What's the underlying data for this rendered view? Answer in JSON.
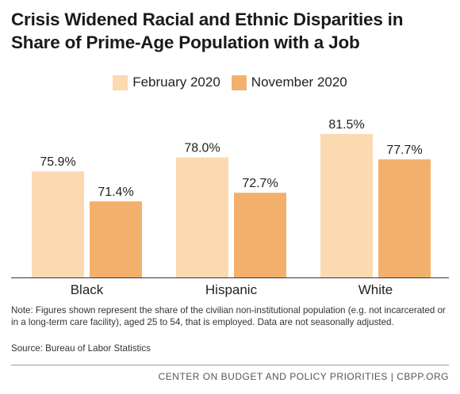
{
  "chart_data": {
    "type": "bar",
    "title": "Crisis Widened Racial and Ethnic Disparities in Share of Prime-Age Population with a Job",
    "categories": [
      "Black",
      "Hispanic",
      "White"
    ],
    "series": [
      {
        "name": "February 2020",
        "values": [
          75.9,
          78.0,
          81.5
        ],
        "labels": [
          "75.9%",
          "78.0%",
          "81.5%"
        ],
        "color": "#fbd9b1"
      },
      {
        "name": "November 2020",
        "values": [
          71.4,
          72.7,
          77.7
        ],
        "labels": [
          "71.4%",
          "72.7%",
          "77.7%"
        ],
        "color": "#f3b06d"
      }
    ],
    "ylim": [
      60,
      84
    ],
    "grid": false,
    "legend": "top-center",
    "xlabel": "",
    "ylabel": ""
  },
  "note": "Note:  Figures shown represent the share of the civilian non-institutional population (e.g. not incarcerated or in a long-term care facility), aged 25 to 54, that is employed. Data are not seasonally adjusted.",
  "source": "Source: Bureau of Labor Statistics",
  "credit": "CENTER ON BUDGET AND POLICY PRIORITIES | CBPP.ORG"
}
